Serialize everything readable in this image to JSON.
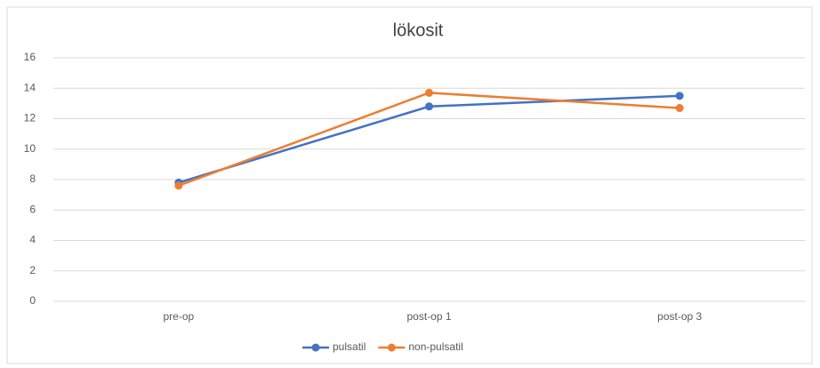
{
  "chart_data": {
    "type": "line",
    "title": "lökosit",
    "categories": [
      "pre-op",
      "post-op 1",
      "post-op 3"
    ],
    "series": [
      {
        "name": "pulsatil",
        "color": "#4472c4",
        "values": [
          7.8,
          12.8,
          13.5
        ]
      },
      {
        "name": "non-pulsatil",
        "color": "#ed7d31",
        "values": [
          7.6,
          13.7,
          12.7
        ]
      }
    ],
    "ylim": [
      0,
      16
    ],
    "yticks": [
      0,
      2,
      4,
      6,
      8,
      10,
      12,
      14,
      16
    ],
    "grid": true,
    "legend": "bottom"
  }
}
